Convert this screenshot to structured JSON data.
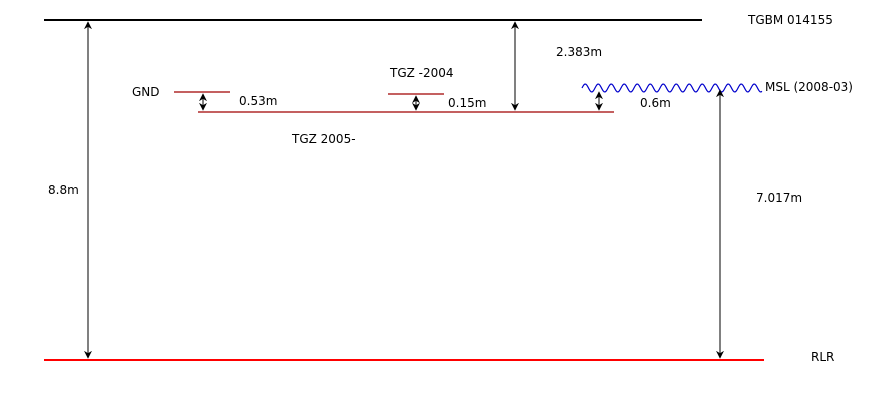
{
  "colors": {
    "line": "#000000",
    "tgz_line": "#a00000",
    "rlr_line": "#ff0000",
    "msl_wave": "#0000cc"
  },
  "labels": {
    "tgbm": "TGBM  014155",
    "gnd": "GND",
    "tgz_2004": "TGZ -2004",
    "tgz_2005": "TGZ 2005-",
    "msl": "MSL (2008-03)",
    "rlr": "RLR"
  },
  "measurements": {
    "rlr_to_tgbm": "8.8m",
    "tgbm_to_tgz": "2.383m",
    "gnd_to_tgz": "0.53m",
    "tgz2004_to_tgz": "0.15m",
    "msl_to_tgz": "0.6m",
    "rlr_to_msl": "7.017m"
  }
}
